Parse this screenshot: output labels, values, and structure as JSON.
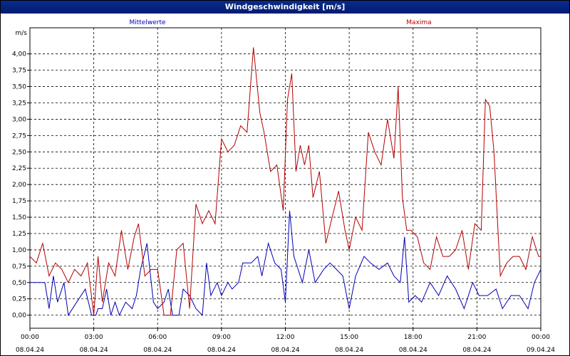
{
  "window": {
    "title": "Windgeschwindigkeit [m/s]"
  },
  "chart_data": {
    "type": "line",
    "title": "Windgeschwindigkeit [m/s]",
    "ylabel": "m/s",
    "ylim": [
      -0.2,
      4.4
    ],
    "xlim": [
      "08.04.24 00:00",
      "09.04.24 00:00"
    ],
    "yticks": [
      "0,00",
      "0,25",
      "0,50",
      "0,75",
      "1,00",
      "1,25",
      "1,50",
      "1,75",
      "2,00",
      "2,25",
      "2,50",
      "2,75",
      "3,00",
      "3,25",
      "3,50",
      "3,75",
      "4,00"
    ],
    "xticks": [
      {
        "time": "00:00",
        "date": "08.04.24",
        "h": 0
      },
      {
        "time": "03:00",
        "date": "08.04.24",
        "h": 3
      },
      {
        "time": "06:00",
        "date": "08.04.24",
        "h": 6
      },
      {
        "time": "09:00",
        "date": "08.04.24",
        "h": 9
      },
      {
        "time": "12:00",
        "date": "08.04.24",
        "h": 12
      },
      {
        "time": "15:00",
        "date": "08.04.24",
        "h": 15
      },
      {
        "time": "18:00",
        "date": "08.04.24",
        "h": 18
      },
      {
        "time": "21:00",
        "date": "08.04.24",
        "h": 21
      },
      {
        "time": "00:00",
        "date": "09.04.24",
        "h": 24
      }
    ],
    "grid": true,
    "series": [
      {
        "name": "Mittelwerte",
        "color": "#0000b4",
        "hours": [
          0,
          0.5,
          0.7,
          0.9,
          1.1,
          1.3,
          1.6,
          1.8,
          2.2,
          2.6,
          2.9,
          3.1,
          3.2,
          3.4,
          3.6,
          3.8,
          4.0,
          4.2,
          4.5,
          4.8,
          5.0,
          5.2,
          5.5,
          5.8,
          6.0,
          6.3,
          6.5,
          6.7,
          7.0,
          7.2,
          7.5,
          7.8,
          8.1,
          8.3,
          8.5,
          8.8,
          9.0,
          9.3,
          9.5,
          9.8,
          10.0,
          10.4,
          10.7,
          10.9,
          11.2,
          11.5,
          11.8,
          12.0,
          12.2,
          12.4,
          12.6,
          12.8,
          13.1,
          13.4,
          13.8,
          14.1,
          14.4,
          14.7,
          15.0,
          15.3,
          15.7,
          16.0,
          16.4,
          16.8,
          17.1,
          17.4,
          17.6,
          17.8,
          18.1,
          18.4,
          18.8,
          19.2,
          19.6,
          20.0,
          20.4,
          20.8,
          21.1,
          21.5,
          21.9,
          22.2,
          22.6,
          23.0,
          23.4,
          23.7,
          24.0
        ],
        "values": [
          0.5,
          0.5,
          0.5,
          0.1,
          0.6,
          0.2,
          0.5,
          0.0,
          0.2,
          0.4,
          0.0,
          0.0,
          0.1,
          0.1,
          0.4,
          0.0,
          0.2,
          0.0,
          0.2,
          0.1,
          0.3,
          0.7,
          1.1,
          0.2,
          0.1,
          0.2,
          0.4,
          0.0,
          0.0,
          0.4,
          0.3,
          0.1,
          0.0,
          0.8,
          0.3,
          0.5,
          0.3,
          0.5,
          0.4,
          0.5,
          0.8,
          0.8,
          0.9,
          0.6,
          1.1,
          0.8,
          0.7,
          0.2,
          1.6,
          0.9,
          0.7,
          0.5,
          1.0,
          0.5,
          0.7,
          0.8,
          0.7,
          0.6,
          0.1,
          0.6,
          0.9,
          0.8,
          0.7,
          0.8,
          0.6,
          0.5,
          1.2,
          0.2,
          0.3,
          0.2,
          0.5,
          0.3,
          0.6,
          0.4,
          0.1,
          0.5,
          0.3,
          0.3,
          0.4,
          0.1,
          0.3,
          0.3,
          0.1,
          0.5,
          0.7
        ]
      },
      {
        "name": "Maxima",
        "color": "#b40000",
        "hours": [
          0,
          0.3,
          0.6,
          0.9,
          1.2,
          1.5,
          1.8,
          2.1,
          2.4,
          2.7,
          3.0,
          3.2,
          3.4,
          3.7,
          4.0,
          4.3,
          4.6,
          4.9,
          5.1,
          5.4,
          5.7,
          6.0,
          6.3,
          6.6,
          6.9,
          7.2,
          7.5,
          7.8,
          8.1,
          8.4,
          8.7,
          9.0,
          9.3,
          9.6,
          9.9,
          10.2,
          10.5,
          10.8,
          11.0,
          11.3,
          11.6,
          11.9,
          12.1,
          12.3,
          12.5,
          12.7,
          12.9,
          13.1,
          13.3,
          13.6,
          13.9,
          14.2,
          14.5,
          14.8,
          15.0,
          15.3,
          15.6,
          15.9,
          16.2,
          16.5,
          16.8,
          17.1,
          17.3,
          17.5,
          17.7,
          17.9,
          18.2,
          18.5,
          18.8,
          19.1,
          19.4,
          19.7,
          20.0,
          20.3,
          20.6,
          20.9,
          21.2,
          21.4,
          21.6,
          21.8,
          22.1,
          22.4,
          22.7,
          23.0,
          23.3,
          23.6,
          23.9,
          24.0
        ],
        "values": [
          0.9,
          0.8,
          1.1,
          0.6,
          0.8,
          0.7,
          0.5,
          0.7,
          0.6,
          0.8,
          0.0,
          0.9,
          0.2,
          0.8,
          0.6,
          1.3,
          0.7,
          1.2,
          1.4,
          0.6,
          0.7,
          0.7,
          0.0,
          0.0,
          1.0,
          1.1,
          0.1,
          1.7,
          1.4,
          1.6,
          1.4,
          2.7,
          2.5,
          2.6,
          2.9,
          2.8,
          4.1,
          3.1,
          2.8,
          2.2,
          2.3,
          1.6,
          3.3,
          3.7,
          2.2,
          2.6,
          2.3,
          2.6,
          1.8,
          2.2,
          1.1,
          1.5,
          1.9,
          1.3,
          1.0,
          1.5,
          1.3,
          2.8,
          2.5,
          2.3,
          3.0,
          2.4,
          3.5,
          1.8,
          1.3,
          1.3,
          1.2,
          0.8,
          0.7,
          1.2,
          0.9,
          0.9,
          1.0,
          1.3,
          0.7,
          1.4,
          1.3,
          3.3,
          3.2,
          2.5,
          0.6,
          0.8,
          0.9,
          0.9,
          0.7,
          1.2,
          0.9,
          0.9
        ]
      }
    ]
  }
}
